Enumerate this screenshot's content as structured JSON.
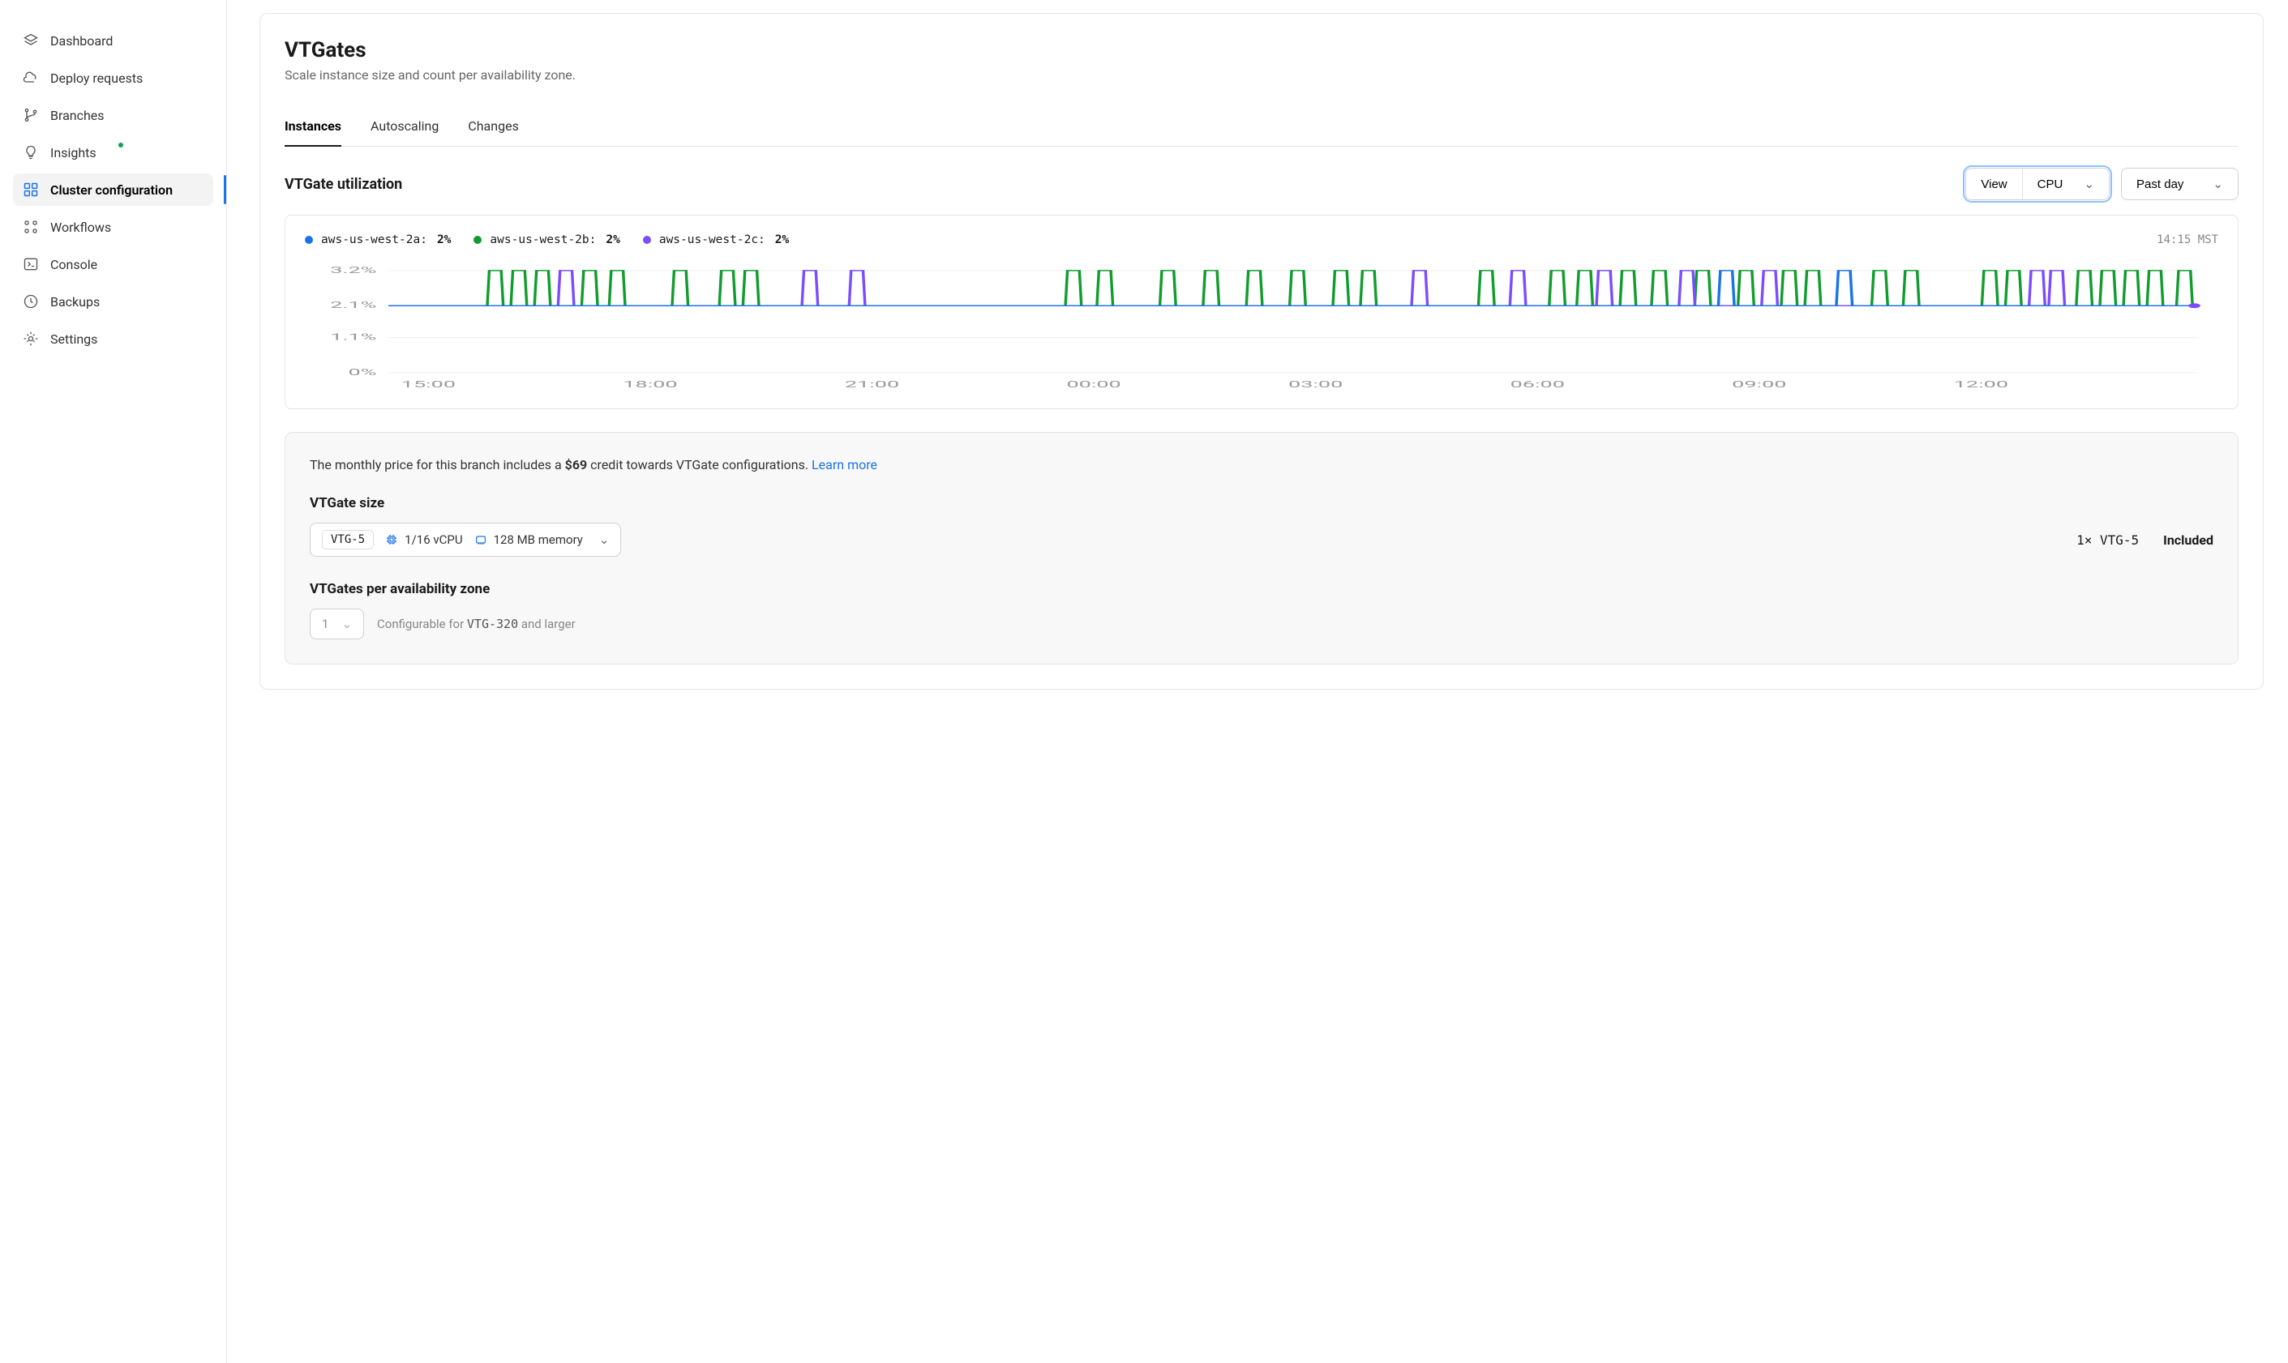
{
  "sidebar": {
    "items": [
      {
        "label": "Dashboard",
        "icon": "layers"
      },
      {
        "label": "Deploy requests",
        "icon": "cloud"
      },
      {
        "label": "Branches",
        "icon": "branch"
      },
      {
        "label": "Insights",
        "icon": "bulb",
        "dot": true
      },
      {
        "label": "Cluster configuration",
        "icon": "cluster",
        "active": true
      },
      {
        "label": "Workflows",
        "icon": "workflow"
      },
      {
        "label": "Console",
        "icon": "terminal"
      },
      {
        "label": "Backups",
        "icon": "clock"
      },
      {
        "label": "Settings",
        "icon": "gear"
      }
    ]
  },
  "header": {
    "title": "VTGates",
    "subtitle": "Scale instance size and count per availability zone."
  },
  "tabs": [
    {
      "label": "Instances",
      "active": true
    },
    {
      "label": "Autoscaling"
    },
    {
      "label": "Changes"
    }
  ],
  "utilization": {
    "title": "VTGate utilization",
    "view_label": "View",
    "metric_label": "CPU",
    "range_label": "Past day",
    "timestamp": "14:15 MST",
    "series": [
      {
        "name": "aws-us-west-2a:",
        "value": "2%",
        "color": "#1a73e8"
      },
      {
        "name": "aws-us-west-2b:",
        "value": "2%",
        "color": "#119c2f"
      },
      {
        "name": "aws-us-west-2c:",
        "value": "2%",
        "color": "#7b4dff"
      }
    ],
    "chart": {
      "ylabels": [
        "3.2%",
        "2.1%",
        "1.1%",
        "0%"
      ],
      "yvals": [
        3.2,
        2.1,
        1.1,
        0
      ],
      "ymax": 3.4,
      "xlabels": [
        "15:00",
        "18:00",
        "21:00",
        "00:00",
        "03:00",
        "06:00",
        "09:00",
        "12:00"
      ],
      "baseline": 2.1,
      "spike": 3.2,
      "spikes_purple": [
        72,
        196,
        220,
        506,
        556,
        600,
        642,
        684,
        820,
        830
      ],
      "spikes_blue": [
        662,
        722
      ],
      "spikes_green": [
        36,
        48,
        60,
        84,
        98,
        130,
        154,
        166,
        330,
        346,
        378,
        400,
        422,
        444,
        466,
        480,
        540,
        576,
        590,
        612,
        628,
        650,
        672,
        694,
        706,
        740,
        756,
        796,
        808,
        844,
        856,
        868,
        880,
        895
      ]
    }
  },
  "pricing": {
    "intro_prefix": "The monthly price for this branch includes a ",
    "credit": "$69",
    "intro_suffix": " credit towards VTGate configurations. ",
    "learn_more": "Learn more",
    "size_title": "VTGate size",
    "size_tag": "VTG-5",
    "vcpu": "1/16 vCPU",
    "memory": "128 MB memory",
    "qty_sku": "1× VTG-5",
    "included": "Included",
    "az_title": "VTGates per availability zone",
    "az_value": "1",
    "az_note_prefix": "Configurable for ",
    "az_note_sku": "VTG-320",
    "az_note_suffix": " and larger"
  }
}
